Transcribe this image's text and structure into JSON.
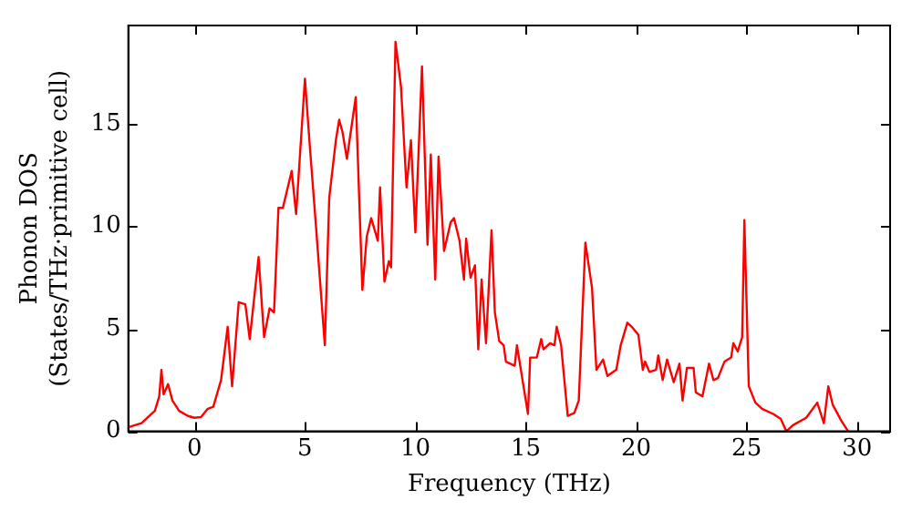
{
  "chart_data": {
    "type": "line",
    "xlabel": "Frequency (THz)",
    "ylabel": "Phonon DOS\n(States/THz·primitive cell)",
    "xlim": [
      -3,
      31.5
    ],
    "xticks": [
      0,
      5,
      10,
      15,
      20,
      25,
      30
    ],
    "ylim": [
      0,
      19.8
    ],
    "yticks": [
      0,
      5,
      10,
      15
    ],
    "grid": false,
    "legend": false,
    "marker": "none",
    "line_style": "solid",
    "series": [
      {
        "color": "#ff0000",
        "x": [
          -3,
          -2.4,
          -1.8,
          -1.6,
          -1.5,
          -1.4,
          -1.2,
          -1,
          -0.7,
          -0.3,
          0,
          0.3,
          0.6,
          0.85,
          1.2,
          1.5,
          1.7,
          2.0,
          2.3,
          2.5,
          2.9,
          3.15,
          3.4,
          3.6,
          3.8,
          4.0,
          4.4,
          4.6,
          5.0,
          5.2,
          5.5,
          5.9,
          6.1,
          6.4,
          6.55,
          6.7,
          6.9,
          7.3,
          7.6,
          7.8,
          8.0,
          8.3,
          8.4,
          8.6,
          8.8,
          8.9,
          9.1,
          9.35,
          9.6,
          9.8,
          10.0,
          10.3,
          10.55,
          10.7,
          10.9,
          11.05,
          11.3,
          11.6,
          11.75,
          12.0,
          12.2,
          12.3,
          12.5,
          12.7,
          12.85,
          13.0,
          13.2,
          13.45,
          13.6,
          13.8,
          14.0,
          14.1,
          14.5,
          14.6,
          15.1,
          15.2,
          15.5,
          15.7,
          15.8,
          16.1,
          16.3,
          16.4,
          16.6,
          16.9,
          17.2,
          17.4,
          17.7,
          18.0,
          18.2,
          18.5,
          18.7,
          19.1,
          19.3,
          19.6,
          19.8,
          20.1,
          20.3,
          20.4,
          20.6,
          20.9,
          21.0,
          21.2,
          21.4,
          21.7,
          21.96,
          22.1,
          22.3,
          22.6,
          22.7,
          23.0,
          23.3,
          23.5,
          23.7,
          24.0,
          24.3,
          24.4,
          24.6,
          24.8,
          24.9,
          25.1,
          25.4,
          25.7,
          26.2,
          26.55,
          26.8,
          27.1,
          27.7,
          28.2,
          28.5,
          28.7,
          28.9,
          29.3,
          29.6
        ],
        "values": [
          0.2,
          0.4,
          1,
          1.7,
          3.0,
          1.8,
          2.3,
          1.5,
          1.0,
          0.75,
          0.66,
          0.7,
          1.1,
          1.2,
          2.5,
          5.1,
          2.2,
          6.3,
          6.2,
          4.5,
          8.5,
          4.6,
          6.0,
          5.8,
          10.9,
          10.9,
          12.7,
          10.6,
          17.2,
          14.2,
          10,
          4.2,
          11.4,
          14.2,
          15.2,
          14.6,
          13.3,
          16.3,
          6.9,
          9.5,
          10.4,
          9.3,
          11.9,
          7.3,
          8.3,
          8.0,
          19.0,
          16.8,
          11.9,
          14.2,
          9.7,
          17.8,
          9.1,
          13.5,
          7.4,
          13.4,
          8.8,
          10.2,
          10.4,
          9.3,
          7.4,
          9.4,
          7.5,
          8.1,
          4.0,
          7.4,
          4.3,
          9.8,
          5.8,
          4.4,
          4.2,
          3.4,
          3.2,
          4.2,
          0.85,
          3.6,
          3.6,
          4.5,
          4.0,
          4.3,
          4.2,
          5.1,
          4.2,
          0.75,
          0.9,
          1.5,
          9.2,
          7.0,
          3.0,
          3.5,
          2.7,
          3.0,
          4.2,
          5.3,
          5.1,
          4.7,
          3.0,
          3.4,
          2.9,
          3.0,
          3.7,
          2.5,
          3.5,
          2.4,
          3.3,
          1.5,
          3.1,
          3.1,
          1.9,
          1.7,
          3.3,
          2.5,
          2.6,
          3.4,
          3.6,
          4.3,
          3.9,
          4.6,
          10.3,
          2.2,
          1.4,
          1.1,
          0.85,
          0.6,
          0,
          0.3,
          0.66,
          1.4,
          0.4,
          2.2,
          1.3,
          0.5,
          0
        ]
      }
    ]
  }
}
